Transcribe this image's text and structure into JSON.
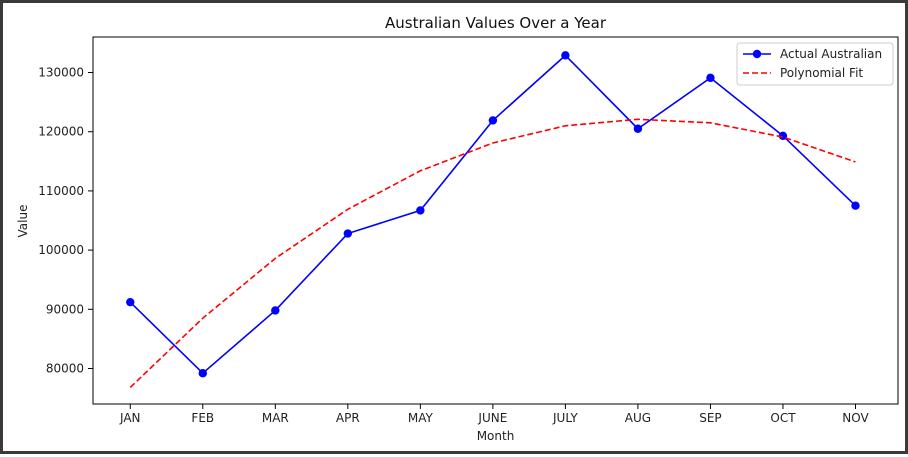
{
  "chart_data": {
    "type": "line",
    "title": "Australian Values Over a Year",
    "xlabel": "Month",
    "ylabel": "Value",
    "categories": [
      "JAN",
      "FEB",
      "MAR",
      "APR",
      "MAY",
      "JUNE",
      "JULY",
      "AUG",
      "SEP",
      "OCT",
      "NOV"
    ],
    "ylim": [
      74000,
      136000
    ],
    "yticks": [
      80000,
      90000,
      100000,
      110000,
      120000,
      130000
    ],
    "legend_position": "top-right",
    "grid": false,
    "series": [
      {
        "name": "Actual Australian",
        "style": "solid-line-with-markers",
        "color": "#0000ff",
        "values": [
          91200,
          79200,
          89800,
          102800,
          106700,
          121900,
          132900,
          120500,
          129100,
          119300,
          107500
        ]
      },
      {
        "name": "Polynomial Fit",
        "style": "dashed-line",
        "color": "#ff0000",
        "values": [
          76800,
          88500,
          98600,
          106900,
          113400,
          118100,
          121000,
          122100,
          121500,
          119100,
          114900
        ]
      }
    ]
  }
}
